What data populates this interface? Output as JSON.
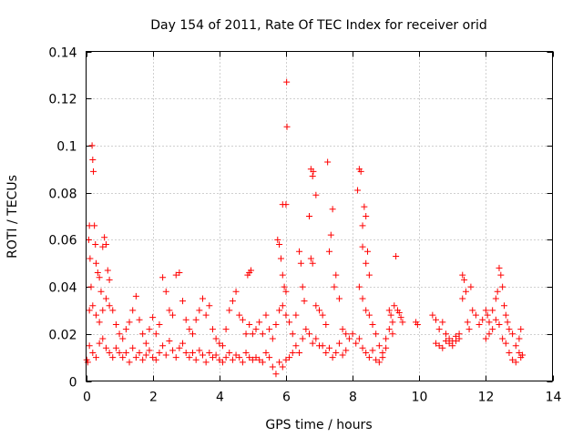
{
  "chart_data": {
    "type": "scatter",
    "title": "Day 154 of 2011, Rate Of TEC Index for receiver orid",
    "xlabel": "GPS time / hours",
    "ylabel": "ROTI / TECUs",
    "xlim": [
      0,
      14
    ],
    "ylim": [
      0,
      0.14
    ],
    "xticks": [
      0,
      2,
      4,
      6,
      8,
      10,
      12,
      14
    ],
    "yticks": [
      0,
      0.02,
      0.04,
      0.06,
      0.08,
      0.1,
      0.12,
      0.14
    ],
    "xtick_labels": [
      "0",
      "2",
      "4",
      "6",
      "8",
      "10",
      "12",
      "14"
    ],
    "ytick_labels": [
      "0",
      "0.02",
      "0.04",
      "0.06",
      "0.08",
      "0.1",
      "0.12",
      "0.14"
    ],
    "grid": true,
    "marker": "+",
    "color": "#ff0000",
    "series": [
      {
        "name": "ROTI",
        "points": [
          [
            0.02,
            0.009
          ],
          [
            0.05,
            0.008
          ],
          [
            0.08,
            0.06
          ],
          [
            0.1,
            0.066
          ],
          [
            0.12,
            0.052
          ],
          [
            0.15,
            0.04
          ],
          [
            0.18,
            0.1
          ],
          [
            0.2,
            0.094
          ],
          [
            0.22,
            0.089
          ],
          [
            0.25,
            0.066
          ],
          [
            0.28,
            0.058
          ],
          [
            0.3,
            0.05
          ],
          [
            0.35,
            0.046
          ],
          [
            0.4,
            0.044
          ],
          [
            0.45,
            0.038
          ],
          [
            0.5,
            0.057
          ],
          [
            0.55,
            0.061
          ],
          [
            0.6,
            0.058
          ],
          [
            0.65,
            0.047
          ],
          [
            0.7,
            0.043
          ],
          [
            0.1,
            0.03
          ],
          [
            0.2,
            0.032
          ],
          [
            0.3,
            0.028
          ],
          [
            0.4,
            0.025
          ],
          [
            0.5,
            0.03
          ],
          [
            0.6,
            0.035
          ],
          [
            0.7,
            0.032
          ],
          [
            0.8,
            0.03
          ],
          [
            0.9,
            0.024
          ],
          [
            1.0,
            0.02
          ],
          [
            0.1,
            0.015
          ],
          [
            0.2,
            0.012
          ],
          [
            0.3,
            0.01
          ],
          [
            0.4,
            0.016
          ],
          [
            0.5,
            0.018
          ],
          [
            0.6,
            0.014
          ],
          [
            0.7,
            0.012
          ],
          [
            0.8,
            0.01
          ],
          [
            0.9,
            0.014
          ],
          [
            1.0,
            0.012
          ],
          [
            1.1,
            0.018
          ],
          [
            1.2,
            0.022
          ],
          [
            1.3,
            0.025
          ],
          [
            1.4,
            0.03
          ],
          [
            1.5,
            0.036
          ],
          [
            1.6,
            0.026
          ],
          [
            1.7,
            0.02
          ],
          [
            1.8,
            0.016
          ],
          [
            1.9,
            0.022
          ],
          [
            2.0,
            0.027
          ],
          [
            1.1,
            0.01
          ],
          [
            1.2,
            0.012
          ],
          [
            1.3,
            0.008
          ],
          [
            1.4,
            0.014
          ],
          [
            1.5,
            0.01
          ],
          [
            1.6,
            0.012
          ],
          [
            1.7,
            0.009
          ],
          [
            1.8,
            0.011
          ],
          [
            1.9,
            0.013
          ],
          [
            2.0,
            0.01
          ],
          [
            2.1,
            0.02
          ],
          [
            2.2,
            0.024
          ],
          [
            2.3,
            0.044
          ],
          [
            2.4,
            0.038
          ],
          [
            2.5,
            0.03
          ],
          [
            2.6,
            0.028
          ],
          [
            2.7,
            0.045
          ],
          [
            2.8,
            0.046
          ],
          [
            2.9,
            0.034
          ],
          [
            3.0,
            0.026
          ],
          [
            2.1,
            0.009
          ],
          [
            2.2,
            0.012
          ],
          [
            2.3,
            0.015
          ],
          [
            2.4,
            0.011
          ],
          [
            2.5,
            0.017
          ],
          [
            2.6,
            0.013
          ],
          [
            2.7,
            0.01
          ],
          [
            2.8,
            0.014
          ],
          [
            2.9,
            0.016
          ],
          [
            3.0,
            0.012
          ],
          [
            3.1,
            0.022
          ],
          [
            3.2,
            0.02
          ],
          [
            3.3,
            0.026
          ],
          [
            3.4,
            0.03
          ],
          [
            3.5,
            0.035
          ],
          [
            3.6,
            0.028
          ],
          [
            3.7,
            0.032
          ],
          [
            3.8,
            0.022
          ],
          [
            3.9,
            0.018
          ],
          [
            4.0,
            0.016
          ],
          [
            3.1,
            0.01
          ],
          [
            3.2,
            0.012
          ],
          [
            3.3,
            0.009
          ],
          [
            3.4,
            0.013
          ],
          [
            3.5,
            0.011
          ],
          [
            3.6,
            0.008
          ],
          [
            3.7,
            0.012
          ],
          [
            3.8,
            0.01
          ],
          [
            3.9,
            0.011
          ],
          [
            4.0,
            0.009
          ],
          [
            4.1,
            0.015
          ],
          [
            4.2,
            0.022
          ],
          [
            4.3,
            0.03
          ],
          [
            4.4,
            0.034
          ],
          [
            4.5,
            0.038
          ],
          [
            4.6,
            0.028
          ],
          [
            4.7,
            0.026
          ],
          [
            4.8,
            0.02
          ],
          [
            4.9,
            0.024
          ],
          [
            5.0,
            0.02
          ],
          [
            4.1,
            0.008
          ],
          [
            4.2,
            0.01
          ],
          [
            4.3,
            0.012
          ],
          [
            4.4,
            0.009
          ],
          [
            4.5,
            0.011
          ],
          [
            4.6,
            0.01
          ],
          [
            4.7,
            0.008
          ],
          [
            4.8,
            0.012
          ],
          [
            4.9,
            0.01
          ],
          [
            5.0,
            0.009
          ],
          [
            4.85,
            0.045
          ],
          [
            4.9,
            0.046
          ],
          [
            4.95,
            0.047
          ],
          [
            5.1,
            0.022
          ],
          [
            5.2,
            0.025
          ],
          [
            5.3,
            0.02
          ],
          [
            5.4,
            0.028
          ],
          [
            5.5,
            0.022
          ],
          [
            5.6,
            0.018
          ],
          [
            5.7,
            0.024
          ],
          [
            5.1,
            0.01
          ],
          [
            5.2,
            0.009
          ],
          [
            5.3,
            0.008
          ],
          [
            5.4,
            0.012
          ],
          [
            5.5,
            0.01
          ],
          [
            5.6,
            0.006
          ],
          [
            5.7,
            0.003
          ],
          [
            5.8,
            0.008
          ],
          [
            5.9,
            0.006
          ],
          [
            6.0,
            0.009
          ],
          [
            5.75,
            0.06
          ],
          [
            5.8,
            0.058
          ],
          [
            5.85,
            0.052
          ],
          [
            5.9,
            0.045
          ],
          [
            5.95,
            0.04
          ],
          [
            6.0,
            0.038
          ],
          [
            5.9,
            0.075
          ],
          [
            6.0,
            0.075
          ],
          [
            6.02,
            0.127
          ],
          [
            6.03,
            0.108
          ],
          [
            5.8,
            0.03
          ],
          [
            5.9,
            0.032
          ],
          [
            6.0,
            0.028
          ],
          [
            6.1,
            0.025
          ],
          [
            6.2,
            0.02
          ],
          [
            6.3,
            0.028
          ],
          [
            6.4,
            0.055
          ],
          [
            6.45,
            0.05
          ],
          [
            6.5,
            0.04
          ],
          [
            6.55,
            0.034
          ],
          [
            6.1,
            0.01
          ],
          [
            6.2,
            0.012
          ],
          [
            6.3,
            0.015
          ],
          [
            6.4,
            0.012
          ],
          [
            6.5,
            0.018
          ],
          [
            6.6,
            0.022
          ],
          [
            6.7,
            0.02
          ],
          [
            6.8,
            0.016
          ],
          [
            6.9,
            0.018
          ],
          [
            7.0,
            0.015
          ],
          [
            6.75,
            0.09
          ],
          [
            6.8,
            0.087
          ],
          [
            6.82,
            0.089
          ],
          [
            6.9,
            0.079
          ],
          [
            6.7,
            0.07
          ],
          [
            6.75,
            0.052
          ],
          [
            6.8,
            0.05
          ],
          [
            6.9,
            0.032
          ],
          [
            7.0,
            0.03
          ],
          [
            7.1,
            0.028
          ],
          [
            7.2,
            0.024
          ],
          [
            7.3,
            0.055
          ],
          [
            7.35,
            0.062
          ],
          [
            7.4,
            0.073
          ],
          [
            7.25,
            0.093
          ],
          [
            7.45,
            0.04
          ],
          [
            7.5,
            0.045
          ],
          [
            7.6,
            0.035
          ],
          [
            7.7,
            0.022
          ],
          [
            7.8,
            0.02
          ],
          [
            7.1,
            0.015
          ],
          [
            7.2,
            0.012
          ],
          [
            7.3,
            0.014
          ],
          [
            7.4,
            0.01
          ],
          [
            7.5,
            0.012
          ],
          [
            7.6,
            0.016
          ],
          [
            7.7,
            0.011
          ],
          [
            7.8,
            0.013
          ],
          [
            7.9,
            0.018
          ],
          [
            8.0,
            0.02
          ],
          [
            8.15,
            0.081
          ],
          [
            8.2,
            0.09
          ],
          [
            8.25,
            0.089
          ],
          [
            8.3,
            0.066
          ],
          [
            8.35,
            0.074
          ],
          [
            8.4,
            0.07
          ],
          [
            8.45,
            0.055
          ],
          [
            8.3,
            0.057
          ],
          [
            8.4,
            0.05
          ],
          [
            8.5,
            0.045
          ],
          [
            8.2,
            0.04
          ],
          [
            8.3,
            0.035
          ],
          [
            8.4,
            0.03
          ],
          [
            8.5,
            0.028
          ],
          [
            8.6,
            0.024
          ],
          [
            8.7,
            0.02
          ],
          [
            8.8,
            0.015
          ],
          [
            8.9,
            0.012
          ],
          [
            9.0,
            0.018
          ],
          [
            9.1,
            0.022
          ],
          [
            8.1,
            0.016
          ],
          [
            8.2,
            0.018
          ],
          [
            8.3,
            0.014
          ],
          [
            8.4,
            0.012
          ],
          [
            8.5,
            0.01
          ],
          [
            8.6,
            0.013
          ],
          [
            8.7,
            0.009
          ],
          [
            8.8,
            0.008
          ],
          [
            8.9,
            0.01
          ],
          [
            9.0,
            0.014
          ],
          [
            9.1,
            0.03
          ],
          [
            9.15,
            0.028
          ],
          [
            9.2,
            0.025
          ],
          [
            9.25,
            0.032
          ],
          [
            9.3,
            0.053
          ],
          [
            9.35,
            0.03
          ],
          [
            9.4,
            0.029
          ],
          [
            9.45,
            0.027
          ],
          [
            9.5,
            0.025
          ],
          [
            9.2,
            0.02
          ],
          [
            9.9,
            0.025
          ],
          [
            9.95,
            0.024
          ],
          [
            10.4,
            0.028
          ],
          [
            10.5,
            0.026
          ],
          [
            10.6,
            0.022
          ],
          [
            10.7,
            0.025
          ],
          [
            10.8,
            0.02
          ],
          [
            10.9,
            0.018
          ],
          [
            11.0,
            0.017
          ],
          [
            11.1,
            0.019
          ],
          [
            11.2,
            0.02
          ],
          [
            11.3,
            0.035
          ],
          [
            11.3,
            0.045
          ],
          [
            11.35,
            0.043
          ],
          [
            11.4,
            0.038
          ],
          [
            11.45,
            0.025
          ],
          [
            11.5,
            0.022
          ],
          [
            11.55,
            0.04
          ],
          [
            11.6,
            0.03
          ],
          [
            11.7,
            0.028
          ],
          [
            11.8,
            0.024
          ],
          [
            11.9,
            0.026
          ],
          [
            10.5,
            0.016
          ],
          [
            10.6,
            0.015
          ],
          [
            10.7,
            0.014
          ],
          [
            10.8,
            0.017
          ],
          [
            10.9,
            0.016
          ],
          [
            11.0,
            0.015
          ],
          [
            11.1,
            0.017
          ],
          [
            11.2,
            0.018
          ],
          [
            12.0,
            0.03
          ],
          [
            12.05,
            0.028
          ],
          [
            12.1,
            0.025
          ],
          [
            12.2,
            0.022
          ],
          [
            12.3,
            0.035
          ],
          [
            12.35,
            0.038
          ],
          [
            12.4,
            0.048
          ],
          [
            12.45,
            0.045
          ],
          [
            12.5,
            0.04
          ],
          [
            12.55,
            0.032
          ],
          [
            12.6,
            0.028
          ],
          [
            12.65,
            0.025
          ],
          [
            12.7,
            0.022
          ],
          [
            12.8,
            0.02
          ],
          [
            12.9,
            0.015
          ],
          [
            13.0,
            0.012
          ],
          [
            13.05,
            0.01
          ],
          [
            13.1,
            0.011
          ],
          [
            12.7,
            0.012
          ],
          [
            12.8,
            0.009
          ],
          [
            12.9,
            0.008
          ],
          [
            13.0,
            0.018
          ],
          [
            13.05,
            0.022
          ],
          [
            12.5,
            0.018
          ],
          [
            12.6,
            0.016
          ],
          [
            12.4,
            0.024
          ],
          [
            12.3,
            0.026
          ],
          [
            12.2,
            0.03
          ],
          [
            12.1,
            0.02
          ],
          [
            12.0,
            0.018
          ]
        ]
      }
    ]
  }
}
